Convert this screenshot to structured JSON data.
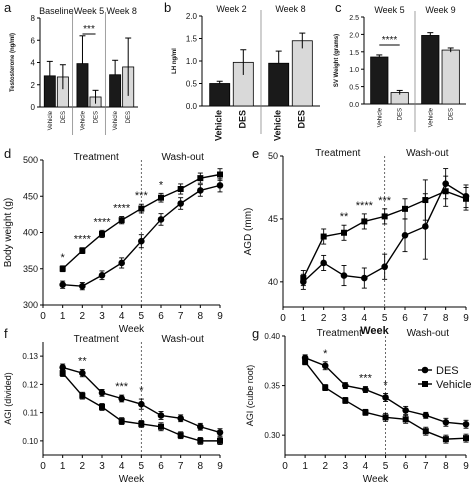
{
  "chart_data": [
    {
      "panel": "a",
      "type": "bar",
      "ylabel": "Testosterone (ng/ml)",
      "ylim": [
        0,
        8
      ],
      "yticks": [
        0,
        2,
        4,
        6,
        8
      ],
      "groups": [
        "Baseline",
        "Week 5",
        "Week 8"
      ],
      "categories": [
        "Vehicle",
        "DES",
        "Vehicle",
        "DES",
        "Vehicle",
        "DES"
      ],
      "values": [
        2.8,
        2.7,
        3.9,
        0.9,
        2.9,
        3.6
      ],
      "errors": [
        1.3,
        1.1,
        2.5,
        0.6,
        1.3,
        2.6
      ],
      "significance": [
        {
          "group": "Week 5",
          "label": "***"
        }
      ],
      "colors": {
        "vehicle": "#1a1a1a",
        "des": "#d9d9d9"
      }
    },
    {
      "panel": "b",
      "type": "bar",
      "ylabel": "LH ng/ml",
      "ylim": [
        0,
        2.0
      ],
      "yticks": [
        0.0,
        0.5,
        1.0,
        1.5,
        2.0
      ],
      "groups": [
        "Week 2",
        "Week 8"
      ],
      "categories": [
        "Vehicle",
        "DES",
        "Vehicle",
        "DES"
      ],
      "values": [
        0.5,
        0.97,
        0.95,
        1.45
      ],
      "errors": [
        0.05,
        0.28,
        0.27,
        0.17
      ]
    },
    {
      "panel": "c",
      "type": "bar",
      "ylabel": "SV Weight (grams)",
      "ylim": [
        0,
        2.5
      ],
      "yticks": [
        0.0,
        0.5,
        1.0,
        1.5,
        2.0,
        2.5
      ],
      "groups": [
        "Week 5",
        "Week 9"
      ],
      "categories": [
        "Vehicle",
        "DES",
        "Vehicle",
        "DES"
      ],
      "values": [
        1.35,
        0.33,
        1.97,
        1.55
      ],
      "errors": [
        0.06,
        0.06,
        0.08,
        0.06
      ],
      "significance": [
        {
          "group": "Week 5",
          "label": "****"
        }
      ]
    },
    {
      "panel": "d",
      "type": "line",
      "xlabel": "Week",
      "ylabel": "Body weight (g)",
      "xlim": [
        0,
        9
      ],
      "ylim": [
        300,
        500
      ],
      "xticks": [
        0,
        1,
        2,
        3,
        4,
        5,
        6,
        7,
        8,
        9
      ],
      "yticks": [
        300,
        350,
        400,
        450,
        500
      ],
      "phases": [
        "Treatment",
        "Wash-out"
      ],
      "x": [
        1,
        2,
        3,
        4,
        5,
        6,
        7,
        8,
        9
      ],
      "series": [
        {
          "marker": "square",
          "values": [
            350,
            375,
            398,
            417,
            433,
            448,
            460,
            475,
            480
          ],
          "errors": [
            4,
            4,
            5,
            5,
            6,
            6,
            7,
            7,
            8
          ]
        },
        {
          "marker": "circle",
          "values": [
            328,
            326,
            341,
            358,
            388,
            418,
            440,
            458,
            465
          ],
          "errors": [
            5,
            5,
            6,
            7,
            9,
            8,
            8,
            8,
            9
          ]
        }
      ],
      "annotations": [
        {
          "x": 1,
          "label": "*"
        },
        {
          "x": 2,
          "label": "****"
        },
        {
          "x": 3,
          "label": "****"
        },
        {
          "x": 4,
          "label": "****"
        },
        {
          "x": 5,
          "label": "***"
        },
        {
          "x": 6,
          "label": "*"
        }
      ]
    },
    {
      "panel": "e",
      "type": "line",
      "xlabel": "Week",
      "ylabel": "AGD (mm)",
      "xlim": [
        0,
        9
      ],
      "ylim": [
        38,
        50
      ],
      "xticks": [
        0,
        1,
        2,
        3,
        4,
        5,
        6,
        7,
        8,
        9
      ],
      "yticks": [
        40,
        45,
        50
      ],
      "phases": [
        "Treatment",
        "Wash-out"
      ],
      "x": [
        1,
        2,
        3,
        4,
        5,
        6,
        7,
        8,
        9
      ],
      "series": [
        {
          "marker": "square",
          "values": [
            40.3,
            43.6,
            43.9,
            44.8,
            45.2,
            45.8,
            46.5,
            47.2,
            46.6
          ],
          "errors": [
            0.6,
            0.6,
            0.6,
            0.6,
            0.6,
            0.8,
            1.6,
            1.2,
            0.9
          ]
        },
        {
          "marker": "circle",
          "values": [
            40.0,
            41.5,
            40.5,
            40.3,
            41.2,
            43.7,
            44.4,
            47.8,
            46.8
          ],
          "errors": [
            0.6,
            0.6,
            0.8,
            0.8,
            1.0,
            1.3,
            2.6,
            1.2,
            0.9
          ]
        }
      ],
      "annotations": [
        {
          "x": 3,
          "label": "**"
        },
        {
          "x": 4,
          "label": "****"
        },
        {
          "x": 5,
          "label": "***"
        }
      ]
    },
    {
      "panel": "f",
      "type": "line",
      "xlabel": "Week",
      "ylabel": "AGI (divided)",
      "xlim": [
        0,
        9
      ],
      "ylim": [
        0.095,
        0.135
      ],
      "xticks": [
        0,
        1,
        2,
        3,
        4,
        5,
        6,
        7,
        8,
        9
      ],
      "yticks": [
        0.1,
        0.11,
        0.12,
        0.13
      ],
      "phases": [
        "Treatment",
        "Wash-out"
      ],
      "x": [
        1,
        2,
        3,
        4,
        5,
        6,
        7,
        8,
        9
      ],
      "series": [
        {
          "marker": "circle",
          "values": [
            0.126,
            0.124,
            0.117,
            0.115,
            0.113,
            0.109,
            0.108,
            0.105,
            0.103
          ],
          "errors": [
            0.0012,
            0.0013,
            0.0012,
            0.0012,
            0.0018,
            0.0014,
            0.0012,
            0.0012,
            0.0013
          ]
        },
        {
          "marker": "square",
          "values": [
            0.124,
            0.116,
            0.112,
            0.107,
            0.106,
            0.105,
            0.102,
            0.1,
            0.1
          ],
          "errors": [
            0.0012,
            0.0012,
            0.0012,
            0.0012,
            0.0012,
            0.0014,
            0.0012,
            0.0012,
            0.0013
          ]
        }
      ],
      "annotations": [
        {
          "x": 2,
          "label": "**"
        },
        {
          "x": 4,
          "label": "***"
        },
        {
          "x": 5,
          "label": "*"
        }
      ]
    },
    {
      "panel": "g",
      "type": "line",
      "xlabel": "Week",
      "ylabel": "AGI (cube root)",
      "xlim": [
        0,
        9
      ],
      "ylim": [
        0.28,
        0.4
      ],
      "xticks": [
        0,
        1,
        2,
        3,
        4,
        5,
        6,
        7,
        8,
        9
      ],
      "yticks": [
        0.3,
        0.35,
        0.4
      ],
      "phases": [
        "Treatment",
        "Wash-out"
      ],
      "x": [
        1,
        2,
        3,
        4,
        5,
        6,
        7,
        8,
        9
      ],
      "series": [
        {
          "name": "DES",
          "marker": "circle",
          "values": [
            0.378,
            0.37,
            0.35,
            0.346,
            0.338,
            0.325,
            0.32,
            0.313,
            0.311
          ],
          "errors": [
            0.003,
            0.004,
            0.003,
            0.003,
            0.004,
            0.004,
            0.003,
            0.004,
            0.004
          ]
        },
        {
          "name": "Vehicle",
          "marker": "square",
          "values": [
            0.374,
            0.348,
            0.335,
            0.323,
            0.318,
            0.316,
            0.304,
            0.296,
            0.297
          ],
          "errors": [
            0.003,
            0.003,
            0.003,
            0.003,
            0.004,
            0.004,
            0.004,
            0.004,
            0.004
          ]
        }
      ],
      "legend": "top-right",
      "annotations": [
        {
          "x": 2,
          "label": "*"
        },
        {
          "x": 4,
          "label": "***"
        },
        {
          "x": 5,
          "label": "*"
        }
      ]
    }
  ]
}
